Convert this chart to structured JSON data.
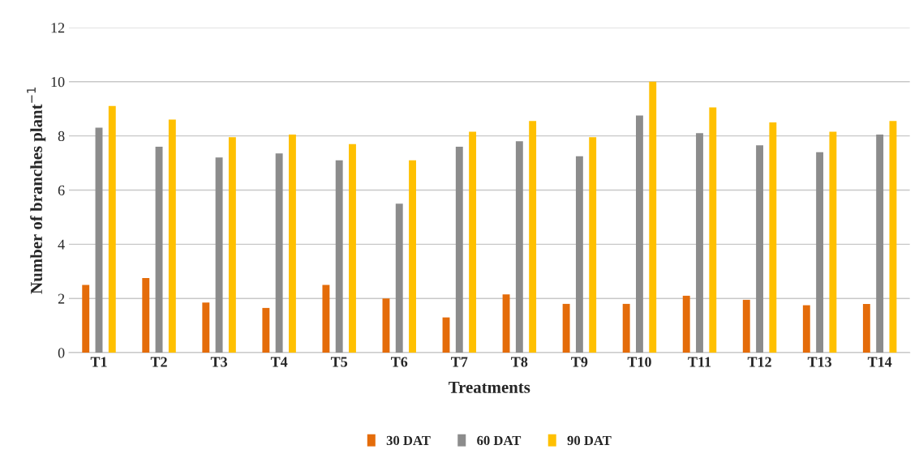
{
  "chart_data": {
    "type": "bar",
    "xlabel": "Treatments",
    "ylabel": "Number of branches plant$^{−1}$",
    "categories": [
      "T1",
      "T2",
      "T3",
      "T4",
      "T5",
      "T6",
      "T7",
      "T8",
      "T9",
      "T10",
      "T11",
      "T12",
      "T13",
      "T14"
    ],
    "series": [
      {
        "name": "30 DAT",
        "color": "#e46c0a",
        "values": [
          2.5,
          2.75,
          1.85,
          1.65,
          2.5,
          2.0,
          1.3,
          2.15,
          1.8,
          1.8,
          2.1,
          1.95,
          1.75,
          1.8
        ]
      },
      {
        "name": "60 DAT",
        "color": "#8c8c8c",
        "values": [
          8.3,
          7.6,
          7.2,
          7.35,
          7.1,
          5.5,
          7.6,
          7.8,
          7.25,
          8.75,
          8.1,
          7.65,
          7.4,
          8.05
        ]
      },
      {
        "name": "90 DAT",
        "color": "#ffc000",
        "values": [
          9.1,
          8.6,
          7.95,
          8.05,
          7.7,
          7.1,
          8.15,
          8.55,
          7.95,
          10.0,
          9.05,
          8.5,
          8.15,
          8.55
        ]
      }
    ],
    "ylim": [
      0,
      12
    ],
    "yticks": [
      0,
      2,
      4,
      6,
      8,
      10,
      12
    ],
    "grid": "y",
    "legend": "bottom"
  }
}
